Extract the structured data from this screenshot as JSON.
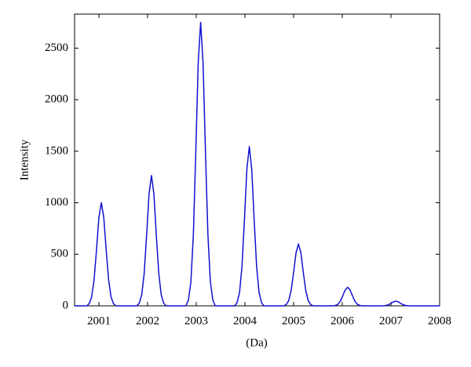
{
  "chart_data": {
    "type": "line",
    "xlabel": "(Da)",
    "ylabel": "Intensity",
    "x": [
      2000.5,
      2000.75,
      2000.8,
      2000.85,
      2000.9,
      2000.95,
      2001.0,
      2001.05,
      2001.1,
      2001.15,
      2001.2,
      2001.25,
      2001.3,
      2001.35,
      2001.78,
      2001.83,
      2001.88,
      2001.93,
      2001.98,
      2002.03,
      2002.08,
      2002.13,
      2002.18,
      2002.23,
      2002.28,
      2002.33,
      2002.38,
      2002.79,
      2002.84,
      2002.89,
      2002.94,
      2002.99,
      2003.04,
      2003.09,
      2003.14,
      2003.19,
      2003.24,
      2003.29,
      2003.34,
      2003.39,
      2003.79,
      2003.84,
      2003.89,
      2003.94,
      2003.99,
      2004.04,
      2004.09,
      2004.14,
      2004.19,
      2004.24,
      2004.29,
      2004.34,
      2004.39,
      2004.8,
      2004.85,
      2004.9,
      2004.95,
      2005.0,
      2005.05,
      2005.1,
      2005.15,
      2005.2,
      2005.25,
      2005.3,
      2005.35,
      2005.4,
      2005.81,
      2005.86,
      2005.91,
      2005.96,
      2006.01,
      2006.06,
      2006.11,
      2006.16,
      2006.21,
      2006.26,
      2006.31,
      2006.36,
      2006.41,
      2006.8,
      2006.85,
      2006.9,
      2006.95,
      2007.0,
      2007.05,
      2007.1,
      2007.15,
      2007.2,
      2007.25,
      2007.3,
      2007.35,
      2007.4,
      2008
    ],
    "series": [
      {
        "name": "Intensity",
        "color": "#1010d0",
        "values": [
          0,
          0,
          21,
          85,
          249,
          539,
          857,
          1000,
          857,
          539,
          249,
          85,
          21,
          0,
          0,
          27,
          108,
          315,
          682,
          1084,
          1265,
          1084,
          682,
          315,
          108,
          27,
          0,
          0,
          58,
          234,
          685,
          1482,
          2357,
          2750,
          2357,
          1482,
          685,
          234,
          58,
          0,
          0,
          32,
          131,
          385,
          833,
          1324,
          1545,
          1324,
          833,
          385,
          131,
          32,
          0,
          0,
          13,
          51,
          149,
          323,
          514,
          600,
          514,
          323,
          149,
          51,
          13,
          0,
          0,
          4,
          15,
          45,
          97,
          154,
          180,
          154,
          97,
          45,
          15,
          4,
          0,
          0,
          1,
          4,
          11,
          24,
          39,
          45,
          39,
          24,
          11,
          4,
          1,
          0,
          0
        ]
      }
    ],
    "xlim": [
      2000.5,
      2008
    ],
    "xticks": [
      2001,
      2002,
      2003,
      2004,
      2005,
      2006,
      2007,
      2008
    ],
    "ylim": [
      0,
      2830
    ],
    "yticks": [
      0,
      500,
      1000,
      1500,
      2000,
      2500
    ]
  }
}
